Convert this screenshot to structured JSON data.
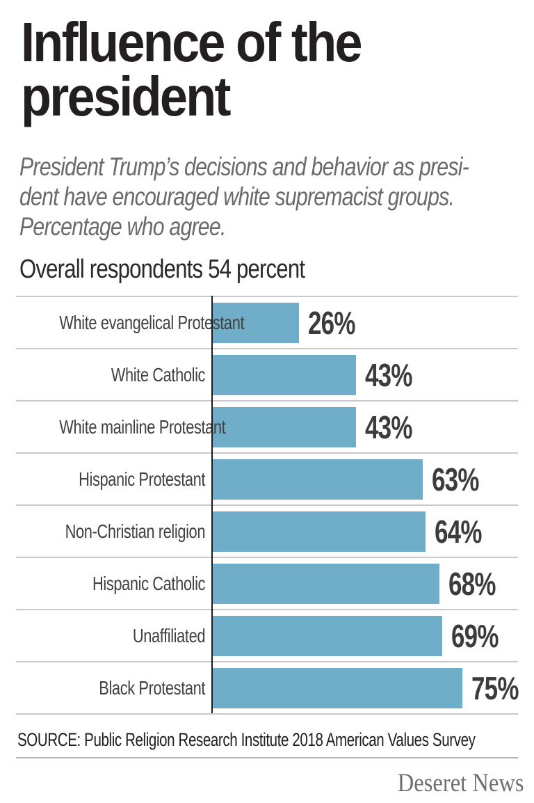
{
  "header": {
    "title_lines": [
      "Influence of the",
      "president"
    ],
    "subtitle_lines": [
      "President Trump’s decisions and behavior as presi-",
      "dent have encouraged white supremacist groups.",
      "Percentage who agree."
    ],
    "overall_note": "Overall respondents 54 percent"
  },
  "chart_data": {
    "type": "bar",
    "orientation": "horizontal",
    "title": "Influence of the president",
    "subtitle": "President Trump’s decisions and behavior as president have encouraged white supremacist groups. Percentage who agree.",
    "annotation": "Overall respondents 54 percent",
    "overall_value": 54,
    "categories": [
      "White evangelical Protestant",
      "White Catholic",
      "White mainline Protestant",
      "Hispanic Protestant",
      "Non-Christian religion",
      "Hispanic Catholic",
      "Unaffiliated",
      "Black Protestant"
    ],
    "values": [
      26,
      43,
      43,
      63,
      64,
      68,
      69,
      75
    ],
    "unit": "%",
    "xlim": [
      0,
      100
    ],
    "grid": "row-separators",
    "legend": "none",
    "bar_color": "#6fadc9",
    "value_labels_shown": true
  },
  "footer": {
    "source": "SOURCE: Public Religion Research Institute 2018 American Values Survey",
    "logo": "Deseret News"
  },
  "colors": {
    "title": "#231f20",
    "subtitle": "#6b6a6a",
    "bar": "#6fadc9",
    "category_label": "#44403f",
    "value_label": "#3e3b3b",
    "row_separator": "#c9c9c9",
    "axis_line": "#1b1b1b",
    "source_text": "#1f1d1d",
    "logo_text": "#6f6f6f",
    "background": "#ffffff"
  }
}
